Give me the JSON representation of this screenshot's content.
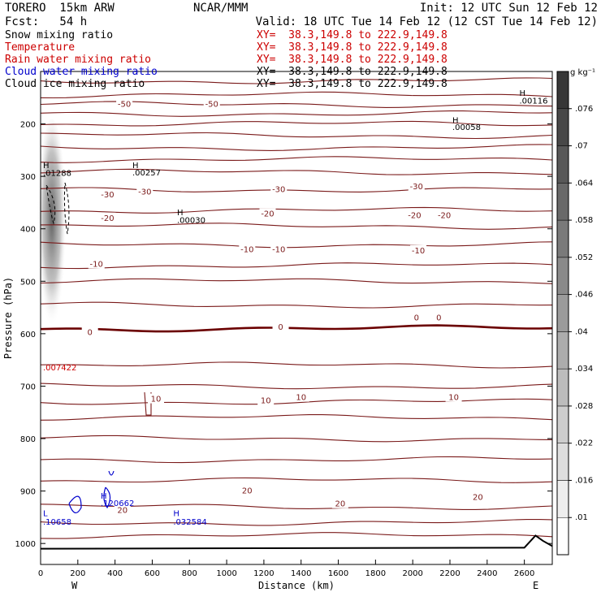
{
  "header": {
    "model": "TORERO  15km ARW",
    "center": "NCAR/MMM",
    "init": "Init: 12 UTC Sun 12 Feb 12",
    "fcst": "Fcst:   54 h",
    "valid": "Valid: 18 UTC Tue 14 Feb 12 (12 CST Tue 14 Feb 12)"
  },
  "fields": [
    {
      "name": "Snow mixing ratio",
      "color": "#000000",
      "xy": "XY=  38.3,149.8 to 222.9,149.8",
      "xy_color": "#cc0000"
    },
    {
      "name": "Temperature",
      "color": "#cc0000",
      "xy": "XY=  38.3,149.8 to 222.9,149.8",
      "xy_color": "#cc0000"
    },
    {
      "name": "Rain water mixing ratio",
      "color": "#cc0000",
      "xy": "XY=  38.3,149.8 to 222.9,149.8",
      "xy_color": "#cc0000"
    },
    {
      "name": "Cloud water mixing ratio",
      "color": "#0000cc",
      "xy": "XY=  38.3,149.8 to 222.9,149.8",
      "xy_color": "#000000"
    },
    {
      "name": "Cloud ice mixing ratio",
      "color": "#000000",
      "xy": "XY=  38.3,149.8 to 222.9,149.8",
      "xy_color": "#000000"
    }
  ],
  "colors": {
    "temperature": "#7a1a1a",
    "freezing": "#6b0000",
    "cloud_water": "#0000cc",
    "rain": "#cc0000",
    "terrain": "#000000"
  },
  "chart_data": {
    "type": "contour",
    "xlabel": "Distance (km)",
    "ylabel": "Pressure (hPa)",
    "xlim": [
      0,
      2750
    ],
    "ylim": [
      1040,
      100
    ],
    "x_ticks": [
      0,
      200,
      400,
      600,
      800,
      1000,
      1200,
      1400,
      1600,
      1800,
      2000,
      2200,
      2400,
      2600
    ],
    "y_ticks": [
      200,
      300,
      400,
      500,
      600,
      700,
      800,
      900,
      1000
    ],
    "x_ends": {
      "left": "W",
      "right": "E"
    },
    "temperature_isotherm_pressures": [
      118,
      145,
      163,
      180,
      200,
      222,
      245,
      268,
      292,
      325,
      365,
      395,
      430,
      470,
      500,
      545,
      590,
      660,
      700,
      730,
      760,
      800,
      840,
      880,
      930,
      960,
      985
    ],
    "temperature_labels": [
      {
        "text": "-50",
        "x": 450,
        "p": 163
      },
      {
        "text": "-50",
        "x": 920,
        "p": 163
      },
      {
        "text": "-30",
        "x": 360,
        "p": 335
      },
      {
        "text": "-30",
        "x": 560,
        "p": 330
      },
      {
        "text": "-30",
        "x": 1280,
        "p": 325
      },
      {
        "text": "-30",
        "x": 2020,
        "p": 320
      },
      {
        "text": "-20",
        "x": 360,
        "p": 380
      },
      {
        "text": "-20",
        "x": 1220,
        "p": 372
      },
      {
        "text": "-20",
        "x": 2010,
        "p": 375
      },
      {
        "text": "-20",
        "x": 2170,
        "p": 375
      },
      {
        "text": "-10",
        "x": 300,
        "p": 468
      },
      {
        "text": "-10",
        "x": 1110,
        "p": 440
      },
      {
        "text": "-10",
        "x": 1280,
        "p": 440
      },
      {
        "text": "-10",
        "x": 2030,
        "p": 442
      },
      {
        "text": "0",
        "x": 265,
        "p": 598
      },
      {
        "text": "0",
        "x": 1290,
        "p": 588
      },
      {
        "text": "0",
        "x": 2020,
        "p": 570
      },
      {
        "text": "0",
        "x": 2140,
        "p": 570
      },
      {
        "text": "10",
        "x": 620,
        "p": 725
      },
      {
        "text": "10",
        "x": 1210,
        "p": 728
      },
      {
        "text": "10",
        "x": 1400,
        "p": 722
      },
      {
        "text": "10",
        "x": 2220,
        "p": 722
      },
      {
        "text": "20",
        "x": 1110,
        "p": 900
      },
      {
        "text": "20",
        "x": 1610,
        "p": 925
      },
      {
        "text": "20",
        "x": 2350,
        "p": 912
      },
      {
        "text": "20",
        "x": 440,
        "p": 937
      }
    ],
    "extrema": [
      {
        "text": "H",
        "x": 2560,
        "p": 140,
        "color": "#000000"
      },
      {
        "text": ".00116",
        "x": 2560,
        "p": 155,
        "color": "#000000"
      },
      {
        "text": "H",
        "x": 2200,
        "p": 192,
        "color": "#000000"
      },
      {
        "text": ".00058",
        "x": 2200,
        "p": 205,
        "color": "#000000"
      },
      {
        "text": "H",
        "x": 480,
        "p": 278,
        "color": "#000000"
      },
      {
        "text": ".00257",
        "x": 480,
        "p": 292,
        "color": "#000000"
      },
      {
        "text": "H",
        "x": 720,
        "p": 368,
        "color": "#000000"
      },
      {
        "text": ".00030",
        "x": 720,
        "p": 383,
        "color": "#000000"
      },
      {
        "text": "H",
        "x": 0,
        "p": 278,
        "color": "#000000"
      },
      {
        "text": ".01288",
        "x": 0,
        "p": 293,
        "color": "#000000"
      },
      {
        "text": ".007422",
        "x": 0,
        "p": 664,
        "color": "#cc0000"
      },
      {
        "text": "H",
        "x": 310,
        "p": 908,
        "color": "#0000cc"
      },
      {
        "text": ".120662",
        "x": 310,
        "p": 922,
        "color": "#0000cc"
      },
      {
        "text": "L",
        "x": 0,
        "p": 942,
        "color": "#0000cc"
      },
      {
        "text": ".10658",
        "x": 0,
        "p": 958,
        "color": "#0000cc"
      },
      {
        "text": "H",
        "x": 700,
        "p": 942,
        "color": "#0000cc"
      },
      {
        "text": ".032584",
        "x": 700,
        "p": 958,
        "color": "#0000cc"
      }
    ],
    "colorbar": {
      "unit": "g kg⁻¹",
      "labels": [
        ".01",
        ".016",
        ".022",
        ".028",
        ".034",
        ".04",
        ".046",
        ".052",
        ".058",
        ".064",
        ".07",
        ".076"
      ],
      "color_low": "#ffffff",
      "color_high": "#000000"
    }
  }
}
